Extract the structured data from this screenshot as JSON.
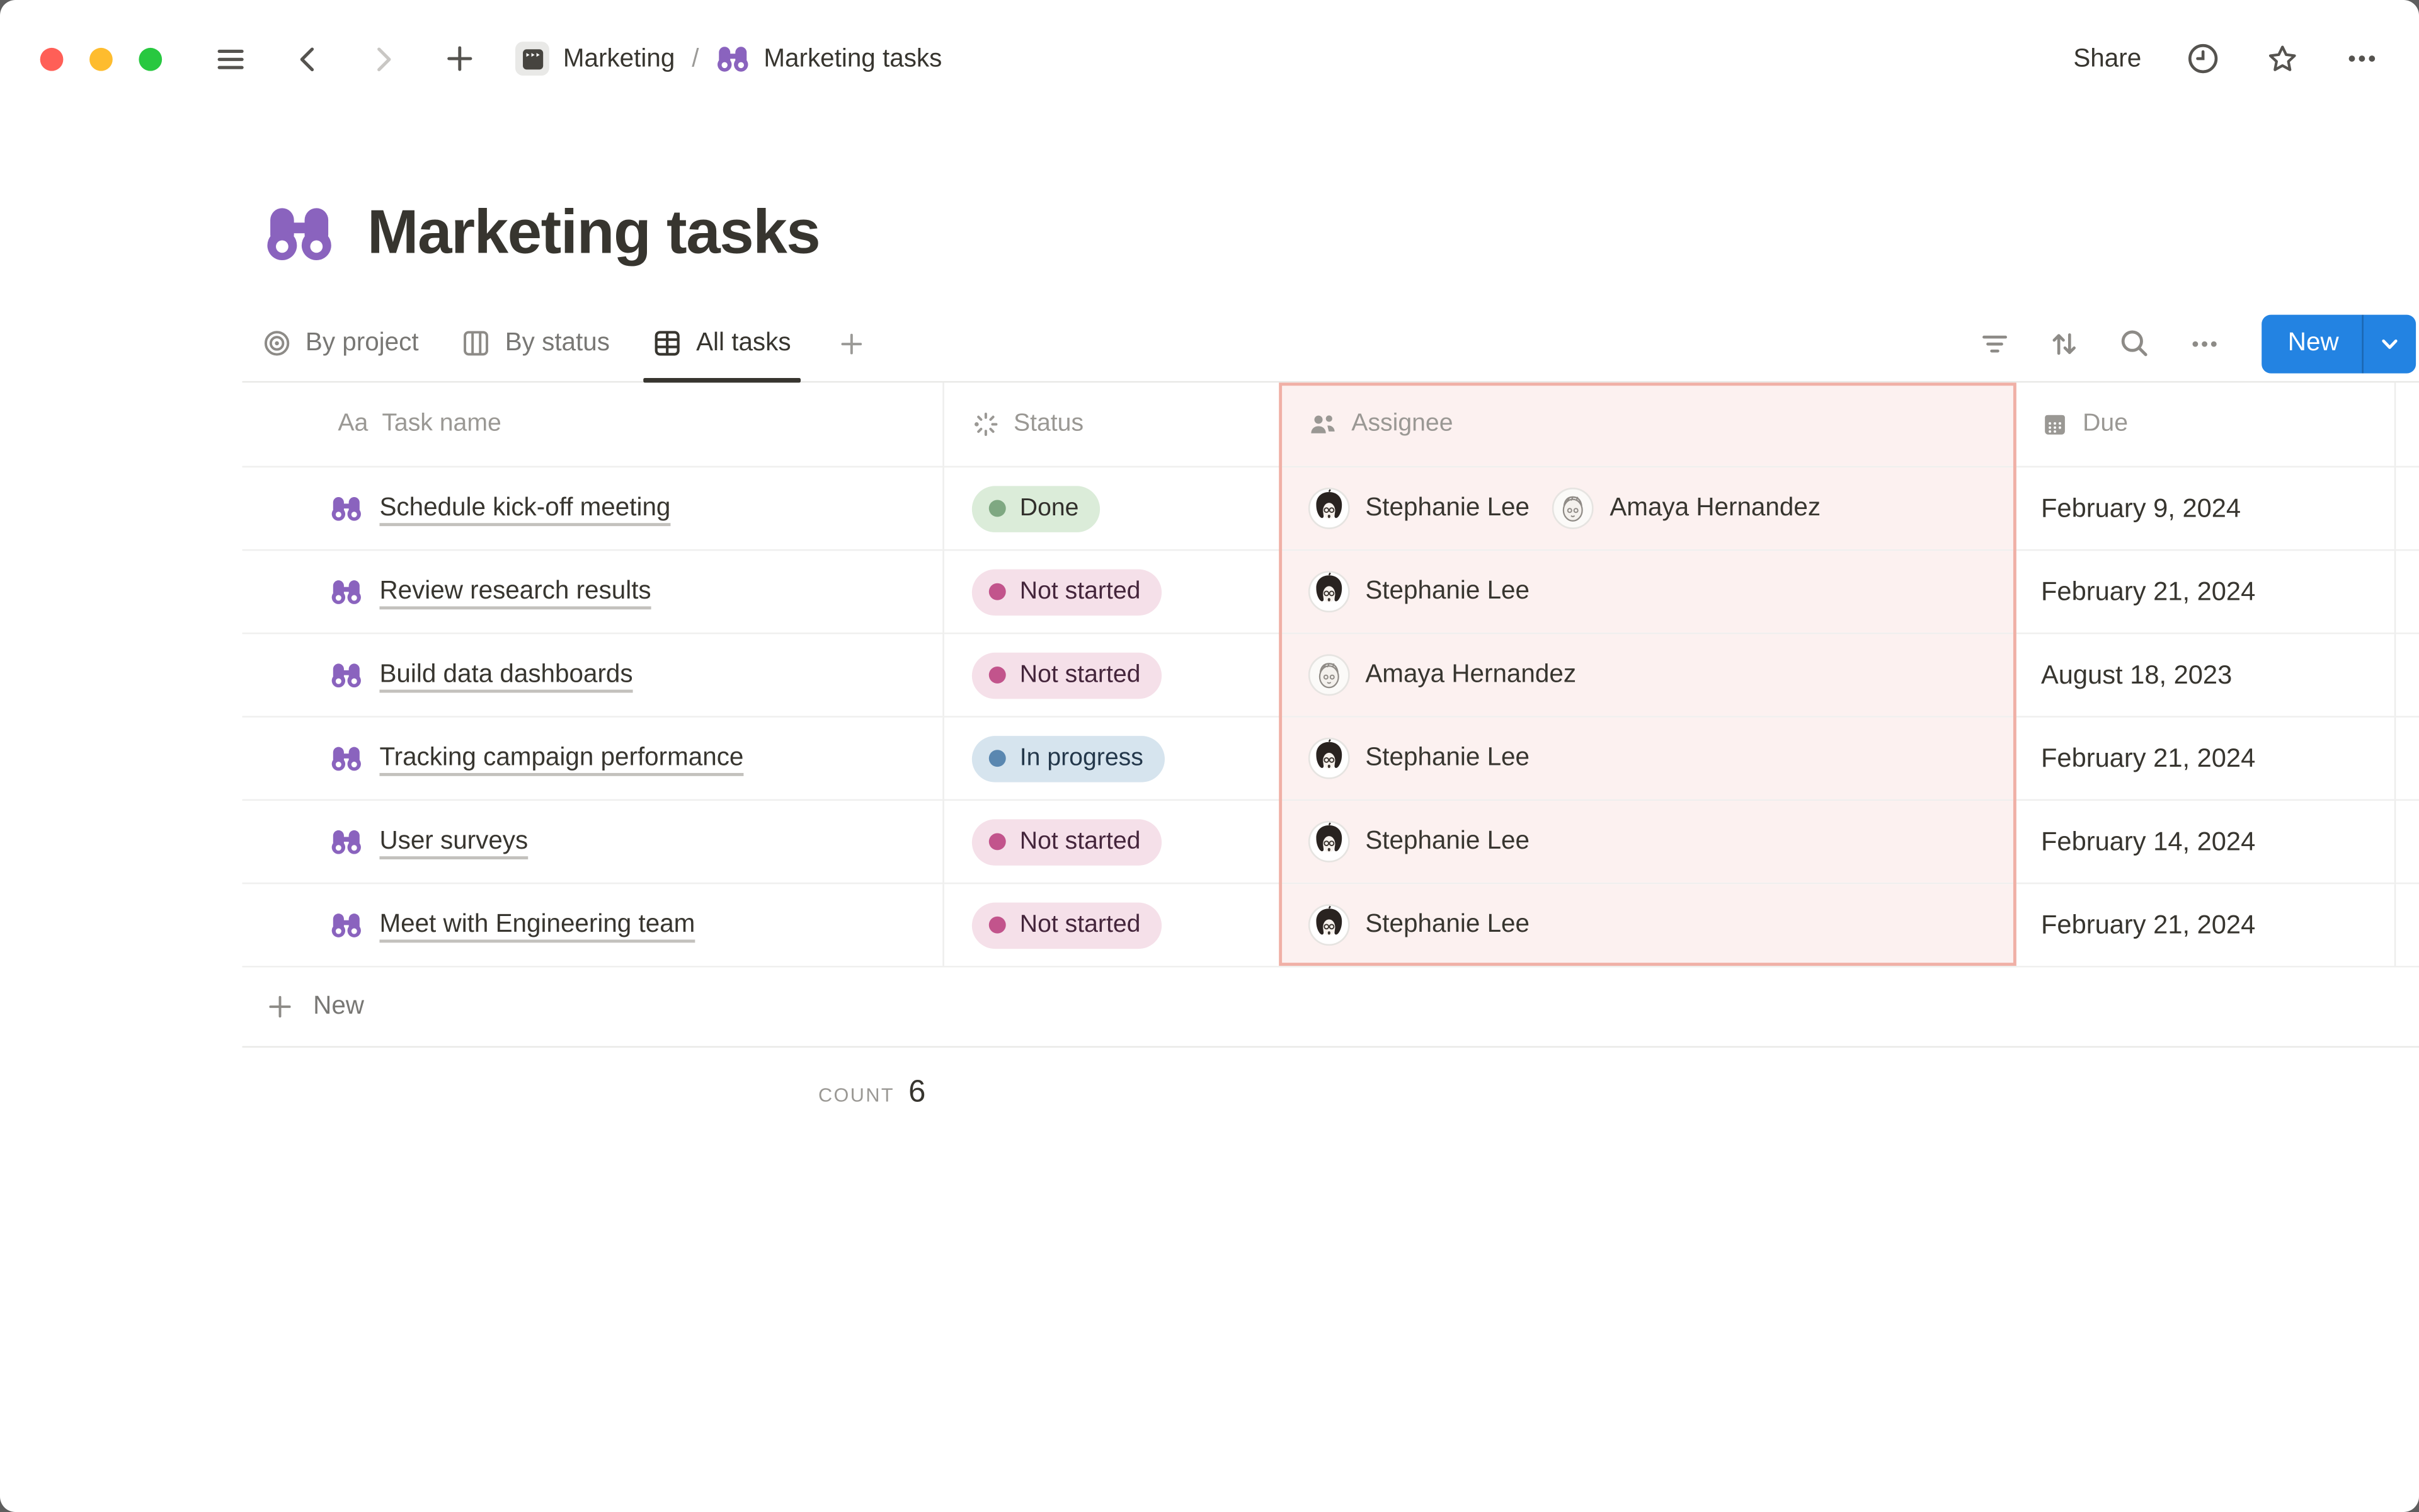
{
  "colors": {
    "traffic_red": "#ff5f57",
    "traffic_yellow": "#febc2e",
    "traffic_green": "#28c840",
    "accent_blue": "#2383e2",
    "page_icon_purple": "#8a63be",
    "highlight_bg": "#fcf1f0",
    "highlight_border": "#f0b0a6"
  },
  "topbar": {
    "breadcrumb": [
      {
        "icon": "projects-icon",
        "label": "Marketing"
      },
      {
        "icon": "binoculars-icon",
        "label": "Marketing tasks"
      }
    ],
    "separator": "/",
    "share_label": "Share"
  },
  "page": {
    "icon": "binoculars-icon",
    "title": "Marketing tasks"
  },
  "views": {
    "tabs": [
      {
        "icon": "target-icon",
        "label": "By project",
        "active": false
      },
      {
        "icon": "board-icon",
        "label": "By status",
        "active": false
      },
      {
        "icon": "table-icon",
        "label": "All tasks",
        "active": true
      }
    ],
    "new_button_label": "New"
  },
  "table": {
    "columns": [
      {
        "icon": "text-icon",
        "label": "Task name"
      },
      {
        "icon": "status-spinner-icon",
        "label": "Status"
      },
      {
        "icon": "people-icon",
        "label": "Assignee",
        "highlighted": true
      },
      {
        "icon": "calendar-icon",
        "label": "Due"
      }
    ],
    "rows": [
      {
        "task": "Schedule kick-off meeting",
        "status_type": "done",
        "status": "Done",
        "assignees": [
          "Stephanie Lee",
          "Amaya Hernandez"
        ],
        "due": "February 9, 2024"
      },
      {
        "task": "Review research results",
        "status_type": "not_started",
        "status": "Not started",
        "assignees": [
          "Stephanie Lee"
        ],
        "due": "February 21, 2024"
      },
      {
        "task": "Build data dashboards",
        "status_type": "not_started",
        "status": "Not started",
        "assignees": [
          "Amaya Hernandez"
        ],
        "due": "August 18, 2023"
      },
      {
        "task": "Tracking campaign performance",
        "status_type": "in_progress",
        "status": "In progress",
        "assignees": [
          "Stephanie Lee"
        ],
        "due": "February 21, 2024"
      },
      {
        "task": "User surveys",
        "status_type": "not_started",
        "status": "Not started",
        "assignees": [
          "Stephanie Lee"
        ],
        "due": "February 14, 2024"
      },
      {
        "task": "Meet with Engineering team",
        "status_type": "not_started",
        "status": "Not started",
        "assignees": [
          "Stephanie Lee"
        ],
        "due": "February 21, 2024"
      }
    ]
  },
  "status_styles": {
    "done": {
      "bg": "#dbecd9",
      "dot": "#7fa882",
      "text": "#32302c"
    },
    "not_started": {
      "bg": "#f5e0e9",
      "dot": "#c2548c",
      "text": "#44253b"
    },
    "in_progress": {
      "bg": "#d6e4ee",
      "dot": "#5a87b0",
      "text": "#24384b"
    }
  },
  "people": {
    "Stephanie Lee": {
      "avatar": "dark-haired-woman"
    },
    "Amaya Hernandez": {
      "avatar": "light-sketch-woman"
    }
  },
  "footer": {
    "new_row_label": "New",
    "count_label": "COUNT",
    "count_value": "6"
  }
}
